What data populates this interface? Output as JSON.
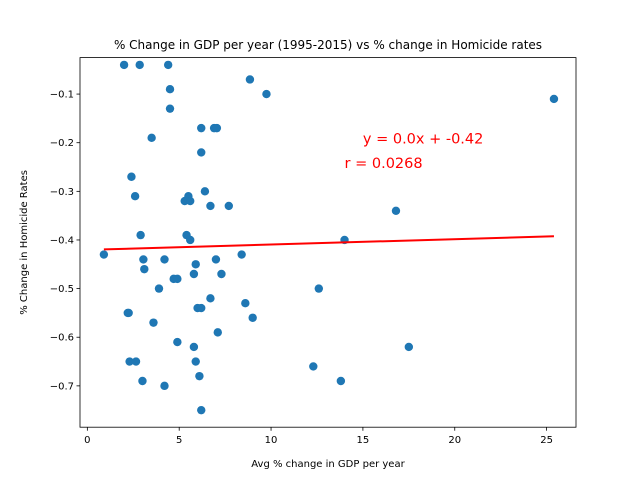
{
  "chart_data": {
    "type": "scatter",
    "title": "% Change in GDP per year (1995-2015) vs % change in Homicide rates",
    "xlabel": "Avg % change in GDP per year",
    "ylabel": "% Change in Homicide Rates",
    "xlim": [
      -0.4,
      26.6
    ],
    "ylim": [
      -0.785,
      -0.025
    ],
    "xticks": [
      0,
      5,
      10,
      15,
      20,
      25
    ],
    "xtick_labels": [
      "0",
      "5",
      "10",
      "15",
      "20",
      "25"
    ],
    "yticks": [
      -0.1,
      -0.2,
      -0.3,
      -0.4,
      -0.5,
      -0.6,
      -0.7
    ],
    "ytick_labels": [
      "−0.1",
      "−0.2",
      "−0.3",
      "−0.4",
      "−0.5",
      "−0.6",
      "−0.7"
    ],
    "grid": false,
    "point_color": "#1f77b4",
    "points": [
      [
        2.0,
        -0.04
      ],
      [
        2.85,
        -0.04
      ],
      [
        4.4,
        -0.04
      ],
      [
        8.85,
        -0.07
      ],
      [
        9.75,
        -0.1
      ],
      [
        4.5,
        -0.09
      ],
      [
        4.5,
        -0.13
      ],
      [
        25.4,
        -0.11
      ],
      [
        3.5,
        -0.19
      ],
      [
        6.2,
        -0.17
      ],
      [
        6.9,
        -0.17
      ],
      [
        7.05,
        -0.17
      ],
      [
        6.2,
        -0.22
      ],
      [
        2.4,
        -0.27
      ],
      [
        2.6,
        -0.31
      ],
      [
        6.4,
        -0.3
      ],
      [
        5.3,
        -0.32
      ],
      [
        5.5,
        -0.31
      ],
      [
        5.6,
        -0.32
      ],
      [
        6.7,
        -0.33
      ],
      [
        7.7,
        -0.33
      ],
      [
        16.8,
        -0.34
      ],
      [
        2.9,
        -0.39
      ],
      [
        5.4,
        -0.39
      ],
      [
        5.6,
        -0.4
      ],
      [
        14.0,
        -0.4
      ],
      [
        0.9,
        -0.43
      ],
      [
        3.05,
        -0.44
      ],
      [
        4.2,
        -0.44
      ],
      [
        7.0,
        -0.44
      ],
      [
        8.4,
        -0.43
      ],
      [
        3.1,
        -0.46
      ],
      [
        5.9,
        -0.45
      ],
      [
        5.8,
        -0.47
      ],
      [
        7.3,
        -0.47
      ],
      [
        4.7,
        -0.48
      ],
      [
        4.9,
        -0.48
      ],
      [
        3.9,
        -0.5
      ],
      [
        12.6,
        -0.5
      ],
      [
        6.7,
        -0.52
      ],
      [
        8.6,
        -0.53
      ],
      [
        6.0,
        -0.54
      ],
      [
        6.2,
        -0.54
      ],
      [
        2.2,
        -0.55
      ],
      [
        2.25,
        -0.55
      ],
      [
        3.6,
        -0.57
      ],
      [
        9.0,
        -0.56
      ],
      [
        7.1,
        -0.59
      ],
      [
        4.9,
        -0.61
      ],
      [
        5.8,
        -0.62
      ],
      [
        17.5,
        -0.62
      ],
      [
        2.3,
        -0.65
      ],
      [
        2.65,
        -0.65
      ],
      [
        5.9,
        -0.65
      ],
      [
        12.3,
        -0.66
      ],
      [
        6.1,
        -0.68
      ],
      [
        3.0,
        -0.69
      ],
      [
        13.8,
        -0.69
      ],
      [
        4.2,
        -0.7
      ],
      [
        6.2,
        -0.75
      ]
    ],
    "regression": {
      "slope": 0.0011,
      "intercept": -0.4204,
      "color": "#ff0000",
      "x_range": [
        0.9,
        25.4
      ],
      "equation_label": "y = 0.0x + -0.42",
      "r_label": "r = 0.0268",
      "equation_at": [
        15,
        -0.2
      ],
      "r_at": [
        14,
        -0.25
      ]
    }
  }
}
